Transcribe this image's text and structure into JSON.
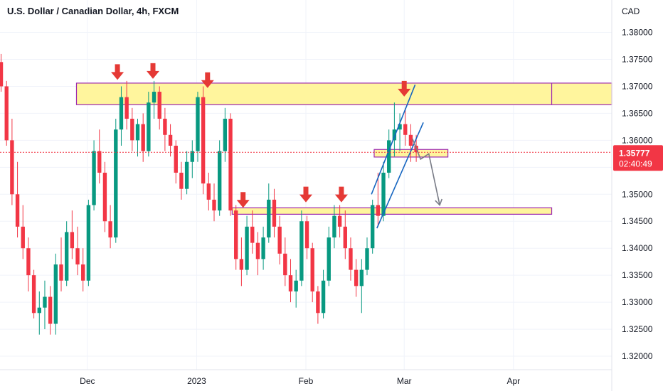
{
  "chart_data": {
    "type": "candlestick",
    "title": "U.S. Dollar / Canadian Dollar, 4h, FXCM",
    "currency": "CAD",
    "ylim": [
      1.3175,
      1.386
    ],
    "y_ticks": [
      "1.38000",
      "1.37500",
      "1.37000",
      "1.36500",
      "1.36000",
      "1.35500",
      "1.35000",
      "1.34500",
      "1.34000",
      "1.33500",
      "1.33000",
      "1.32500",
      "1.32000"
    ],
    "y_tick_values": [
      1.38,
      1.375,
      1.37,
      1.365,
      1.36,
      1.355,
      1.35,
      1.345,
      1.34,
      1.335,
      1.33,
      1.325,
      1.32
    ],
    "x_ticks": [
      "Dec",
      "2023",
      "Feb",
      "Mar",
      "Apr"
    ],
    "x_tick_values": [
      16,
      36,
      56,
      74,
      94
    ],
    "xlim": [
      0,
      112
    ],
    "current_price": "1.35777",
    "current_price_value": 1.35777,
    "countdown": "02:40:49",
    "colors": {
      "up": "#089981",
      "down": "#f23645",
      "zone_fill": "#fff59d",
      "zone_border": "#9c27b0",
      "arrow": "#e53935",
      "channel": "#1565c0",
      "projection": "#787b86",
      "price_line": "#f23645"
    },
    "zones": [
      {
        "name": "resistance",
        "x_start": 14,
        "x_end": 112,
        "y_low": 1.3666,
        "y_high": 1.3706,
        "split_x": 101
      },
      {
        "name": "support",
        "x_start": 42.5,
        "x_end": 101,
        "y_low": 1.3463,
        "y_high": 1.3475
      },
      {
        "name": "retest",
        "x_start": 68.5,
        "x_end": 82,
        "y_low": 1.3569,
        "y_high": 1.3583
      }
    ],
    "markers": [
      {
        "x": 21.5,
        "y": 1.3712
      },
      {
        "x": 28,
        "y": 1.3714
      },
      {
        "x": 38,
        "y": 1.3697
      },
      {
        "x": 44.5,
        "y": 1.3475
      },
      {
        "x": 56,
        "y": 1.3485
      },
      {
        "x": 62.5,
        "y": 1.3485
      },
      {
        "x": 74,
        "y": 1.3681
      }
    ],
    "channel_lines": [
      {
        "x1": 68,
        "y1": 1.35,
        "x2": 76,
        "y2": 1.3703
      },
      {
        "x1": 69,
        "y1": 1.3437,
        "x2": 77.5,
        "y2": 1.3633
      }
    ],
    "projection": [
      {
        "x": 75.5,
        "y": 1.3603
      },
      {
        "x": 77,
        "y": 1.3565
      },
      {
        "x": 78.5,
        "y": 1.3575
      },
      {
        "x": 80.5,
        "y": 1.348
      }
    ],
    "series": [
      {
        "ohlc": [
          [
            1.3745,
            1.376,
            1.369,
            1.37
          ],
          [
            1.37,
            1.371,
            1.359,
            1.36
          ],
          [
            1.36,
            1.364,
            1.348,
            1.35
          ],
          [
            1.35,
            1.356,
            1.342,
            1.344
          ],
          [
            1.344,
            1.348,
            1.338,
            1.34
          ],
          [
            1.34,
            1.342,
            1.332,
            1.335
          ],
          [
            1.335,
            1.336,
            1.327,
            1.328
          ],
          [
            1.328,
            1.332,
            1.324,
            1.329
          ],
          [
            1.329,
            1.334,
            1.325,
            1.331
          ],
          [
            1.331,
            1.333,
            1.324,
            1.326
          ],
          [
            1.326,
            1.339,
            1.324,
            1.337
          ],
          [
            1.337,
            1.342,
            1.332,
            1.334
          ],
          [
            1.334,
            1.345,
            1.333,
            1.343
          ],
          [
            1.343,
            1.347,
            1.338,
            1.34
          ],
          [
            1.34,
            1.344,
            1.335,
            1.337
          ],
          [
            1.337,
            1.34,
            1.332,
            1.334
          ],
          [
            1.334,
            1.349,
            1.333,
            1.348
          ],
          [
            1.348,
            1.36,
            1.347,
            1.358
          ],
          [
            1.358,
            1.362,
            1.352,
            1.354
          ],
          [
            1.354,
            1.356,
            1.343,
            1.345
          ],
          [
            1.345,
            1.348,
            1.34,
            1.342
          ],
          [
            1.342,
            1.364,
            1.341,
            1.362
          ],
          [
            1.362,
            1.37,
            1.359,
            1.368
          ],
          [
            1.368,
            1.371,
            1.362,
            1.364
          ],
          [
            1.364,
            1.366,
            1.358,
            1.36
          ],
          [
            1.36,
            1.364,
            1.357,
            1.363
          ],
          [
            1.363,
            1.365,
            1.356,
            1.358
          ],
          [
            1.358,
            1.369,
            1.357,
            1.367
          ],
          [
            1.367,
            1.371,
            1.364,
            1.369
          ],
          [
            1.369,
            1.37,
            1.362,
            1.364
          ],
          [
            1.364,
            1.366,
            1.358,
            1.361
          ],
          [
            1.361,
            1.363,
            1.357,
            1.359
          ],
          [
            1.359,
            1.36,
            1.352,
            1.354
          ],
          [
            1.354,
            1.356,
            1.349,
            1.351
          ],
          [
            1.351,
            1.358,
            1.35,
            1.356
          ],
          [
            1.356,
            1.36,
            1.353,
            1.358
          ],
          [
            1.358,
            1.369,
            1.356,
            1.368
          ],
          [
            1.368,
            1.37,
            1.35,
            1.352
          ],
          [
            1.352,
            1.354,
            1.347,
            1.349
          ],
          [
            1.349,
            1.352,
            1.345,
            1.347
          ],
          [
            1.347,
            1.36,
            1.346,
            1.358
          ],
          [
            1.358,
            1.366,
            1.356,
            1.364
          ],
          [
            1.364,
            1.365,
            1.346,
            1.347
          ],
          [
            1.347,
            1.348,
            1.336,
            1.338
          ],
          [
            1.338,
            1.342,
            1.333,
            1.336
          ],
          [
            1.336,
            1.346,
            1.335,
            1.344
          ],
          [
            1.344,
            1.347,
            1.339,
            1.341
          ],
          [
            1.341,
            1.343,
            1.335,
            1.338
          ],
          [
            1.338,
            1.344,
            1.336,
            1.342
          ],
          [
            1.342,
            1.352,
            1.341,
            1.349
          ],
          [
            1.349,
            1.351,
            1.342,
            1.344
          ],
          [
            1.344,
            1.346,
            1.337,
            1.339
          ],
          [
            1.339,
            1.342,
            1.333,
            1.335
          ],
          [
            1.335,
            1.338,
            1.33,
            1.332
          ],
          [
            1.332,
            1.336,
            1.329,
            1.334
          ],
          [
            1.334,
            1.347,
            1.333,
            1.345
          ],
          [
            1.345,
            1.346,
            1.338,
            1.34
          ],
          [
            1.34,
            1.341,
            1.33,
            1.332
          ],
          [
            1.332,
            1.333,
            1.326,
            1.328
          ],
          [
            1.328,
            1.336,
            1.327,
            1.334
          ],
          [
            1.334,
            1.344,
            1.333,
            1.342
          ],
          [
            1.342,
            1.348,
            1.34,
            1.346
          ],
          [
            1.346,
            1.348,
            1.342,
            1.344
          ],
          [
            1.344,
            1.347,
            1.338,
            1.34
          ],
          [
            1.34,
            1.342,
            1.334,
            1.336
          ],
          [
            1.336,
            1.338,
            1.331,
            1.333
          ],
          [
            1.333,
            1.338,
            1.328,
            1.336
          ],
          [
            1.336,
            1.342,
            1.335,
            1.34
          ],
          [
            1.34,
            1.349,
            1.339,
            1.348
          ],
          [
            1.348,
            1.354,
            1.344,
            1.346
          ],
          [
            1.346,
            1.356,
            1.345,
            1.354
          ],
          [
            1.354,
            1.362,
            1.353,
            1.36
          ],
          [
            1.36,
            1.367,
            1.357,
            1.362
          ],
          [
            1.362,
            1.365,
            1.358,
            1.363
          ],
          [
            1.363,
            1.366,
            1.359,
            1.361
          ],
          [
            1.361,
            1.363,
            1.356,
            1.359
          ],
          [
            1.359,
            1.361,
            1.356,
            1.3578
          ]
        ]
      }
    ]
  }
}
